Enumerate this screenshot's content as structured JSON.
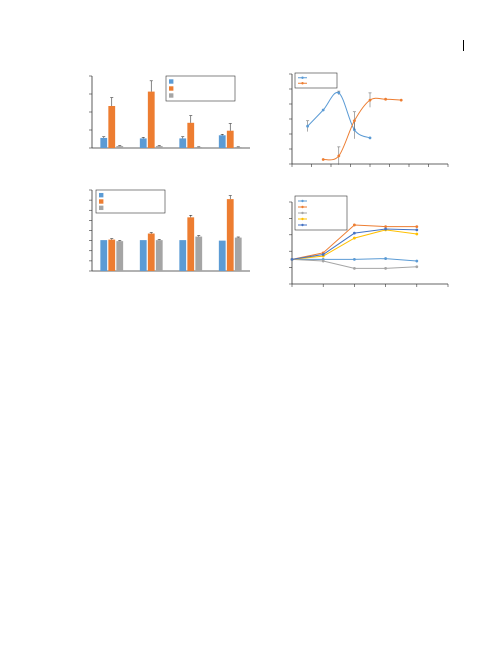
{
  "colors": {
    "blue": "#5b9bd5",
    "orange": "#ed7d31",
    "gray": "#a5a5a5",
    "yellow": "#ffc000",
    "darkblue": "#4472c4",
    "axis": "#333333",
    "legend_border": "#333333"
  },
  "chart_data": [
    {
      "type": "bar",
      "title": "",
      "xlabel": "",
      "ylabel": "",
      "categories": [
        "",
        "",
        "",
        ""
      ],
      "ylim": [
        0,
        3
      ],
      "legend": "top-right",
      "series": [
        {
          "values": [
            0.42,
            0.4,
            0.4,
            0.53
          ],
          "errors": [
            0.05,
            0.04,
            0.07,
            0.04
          ],
          "color": "blue"
        },
        {
          "values": [
            1.75,
            2.35,
            1.05,
            0.72
          ],
          "errors": [
            0.35,
            0.45,
            0.3,
            0.3
          ],
          "color": "orange"
        },
        {
          "values": [
            0.08,
            0.08,
            0.04,
            0.04
          ],
          "errors": [
            0.02,
            0.02,
            0.01,
            0.01
          ],
          "color": "gray"
        }
      ]
    },
    {
      "type": "line",
      "title": "",
      "xlabel": "",
      "ylabel": "",
      "xlim": [
        0,
        10
      ],
      "ylim": [
        0,
        5
      ],
      "smooth": true,
      "legend": "top-left",
      "series": [
        {
          "color": "blue",
          "points": [
            {
              "x": 1,
              "y": 2.1,
              "err": 0.3
            },
            {
              "x": 2,
              "y": 3.0,
              "err": 0
            },
            {
              "x": 3,
              "y": 3.95,
              "err": 0.1
            },
            {
              "x": 4,
              "y": 1.9,
              "err": 0.5
            },
            {
              "x": 5,
              "y": 1.45,
              "err": 0
            }
          ]
        },
        {
          "color": "orange",
          "points": [
            {
              "x": 2,
              "y": 0.25,
              "err": 0
            },
            {
              "x": 3,
              "y": 0.45,
              "err": 0.5
            },
            {
              "x": 4,
              "y": 2.4,
              "err": 0.5
            },
            {
              "x": 5,
              "y": 3.55,
              "err": 0.4
            },
            {
              "x": 6,
              "y": 3.6,
              "err": 0
            },
            {
              "x": 7,
              "y": 3.55,
              "err": 0
            }
          ]
        }
      ]
    },
    {
      "type": "bar",
      "title": "",
      "xlabel": "",
      "ylabel": "",
      "categories": [
        "",
        "",
        "",
        ""
      ],
      "ylim": [
        0,
        8
      ],
      "legend": "top-left",
      "series": [
        {
          "values": [
            3.05,
            3.05,
            3.05,
            3.0
          ],
          "errors": [
            0,
            0,
            0,
            0
          ],
          "color": "blue"
        },
        {
          "values": [
            3.1,
            3.7,
            5.3,
            7.1
          ],
          "errors": [
            0.1,
            0.1,
            0.2,
            0.35
          ],
          "color": "orange"
        },
        {
          "values": [
            2.95,
            3.05,
            3.4,
            3.3
          ],
          "errors": [
            0.06,
            0.06,
            0.1,
            0.06
          ],
          "color": "gray"
        }
      ]
    },
    {
      "type": "line",
      "title": "",
      "xlabel": "",
      "ylabel": "",
      "xlim": [
        0,
        5
      ],
      "ylim": [
        0,
        5
      ],
      "legend": "top-left",
      "series": [
        {
          "color": "blue",
          "points": [
            {
              "x": 0,
              "y": 1.5
            },
            {
              "x": 1,
              "y": 1.5
            },
            {
              "x": 2,
              "y": 1.5
            },
            {
              "x": 3,
              "y": 1.55
            },
            {
              "x": 4,
              "y": 1.4
            }
          ]
        },
        {
          "color": "orange",
          "points": [
            {
              "x": 0,
              "y": 1.5
            },
            {
              "x": 1,
              "y": 1.9
            },
            {
              "x": 2,
              "y": 3.6
            },
            {
              "x": 3,
              "y": 3.5
            },
            {
              "x": 4,
              "y": 3.5
            }
          ]
        },
        {
          "color": "gray",
          "points": [
            {
              "x": 0,
              "y": 1.5
            },
            {
              "x": 1,
              "y": 1.4
            },
            {
              "x": 2,
              "y": 0.95
            },
            {
              "x": 3,
              "y": 0.95
            },
            {
              "x": 4,
              "y": 1.05
            }
          ]
        },
        {
          "color": "yellow",
          "points": [
            {
              "x": 0,
              "y": 1.5
            },
            {
              "x": 1,
              "y": 1.7
            },
            {
              "x": 2,
              "y": 2.8
            },
            {
              "x": 3,
              "y": 3.3
            },
            {
              "x": 4,
              "y": 3.05
            }
          ]
        },
        {
          "color": "darkblue",
          "points": [
            {
              "x": 0,
              "y": 1.5
            },
            {
              "x": 1,
              "y": 1.8
            },
            {
              "x": 2,
              "y": 3.1
            },
            {
              "x": 3,
              "y": 3.35
            },
            {
              "x": 4,
              "y": 3.3
            }
          ]
        }
      ]
    }
  ]
}
